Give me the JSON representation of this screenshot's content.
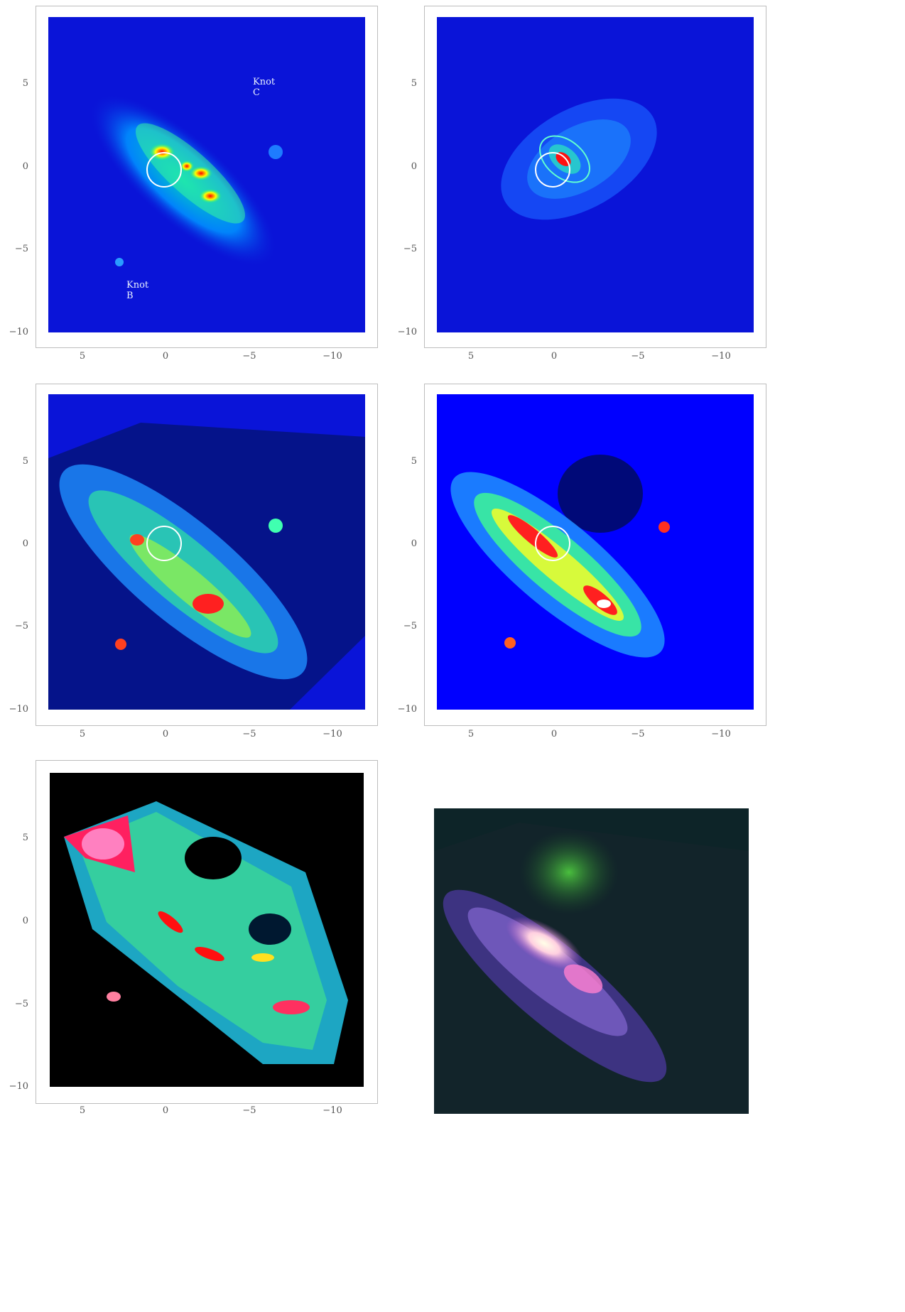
{
  "figure": {
    "y_ticks": [
      "5",
      "0",
      "−5",
      "−10"
    ],
    "x_ticks": [
      "5",
      "0",
      "−5",
      "−10"
    ],
    "annotations": {
      "knot_c": "Knot C",
      "knot_b": "Knot B"
    }
  },
  "colors": {
    "map_background": "#0000ff",
    "ratio_background": "#000000",
    "composite_background": "#0d2428",
    "aperture_circle": "#ffffff"
  },
  "panels": [
    {
      "name": "map-top-left",
      "background": "#0a14d8"
    },
    {
      "name": "map-top-right",
      "background": "#0a14d8"
    },
    {
      "name": "map-middle-left",
      "background": "#0a14d8"
    },
    {
      "name": "map-middle-right",
      "background": "#0000ff"
    },
    {
      "name": "ratio-map-bottom-left",
      "background": "#000000"
    },
    {
      "name": "rgb-composite-bottom-right",
      "background": "#0d2428"
    }
  ]
}
